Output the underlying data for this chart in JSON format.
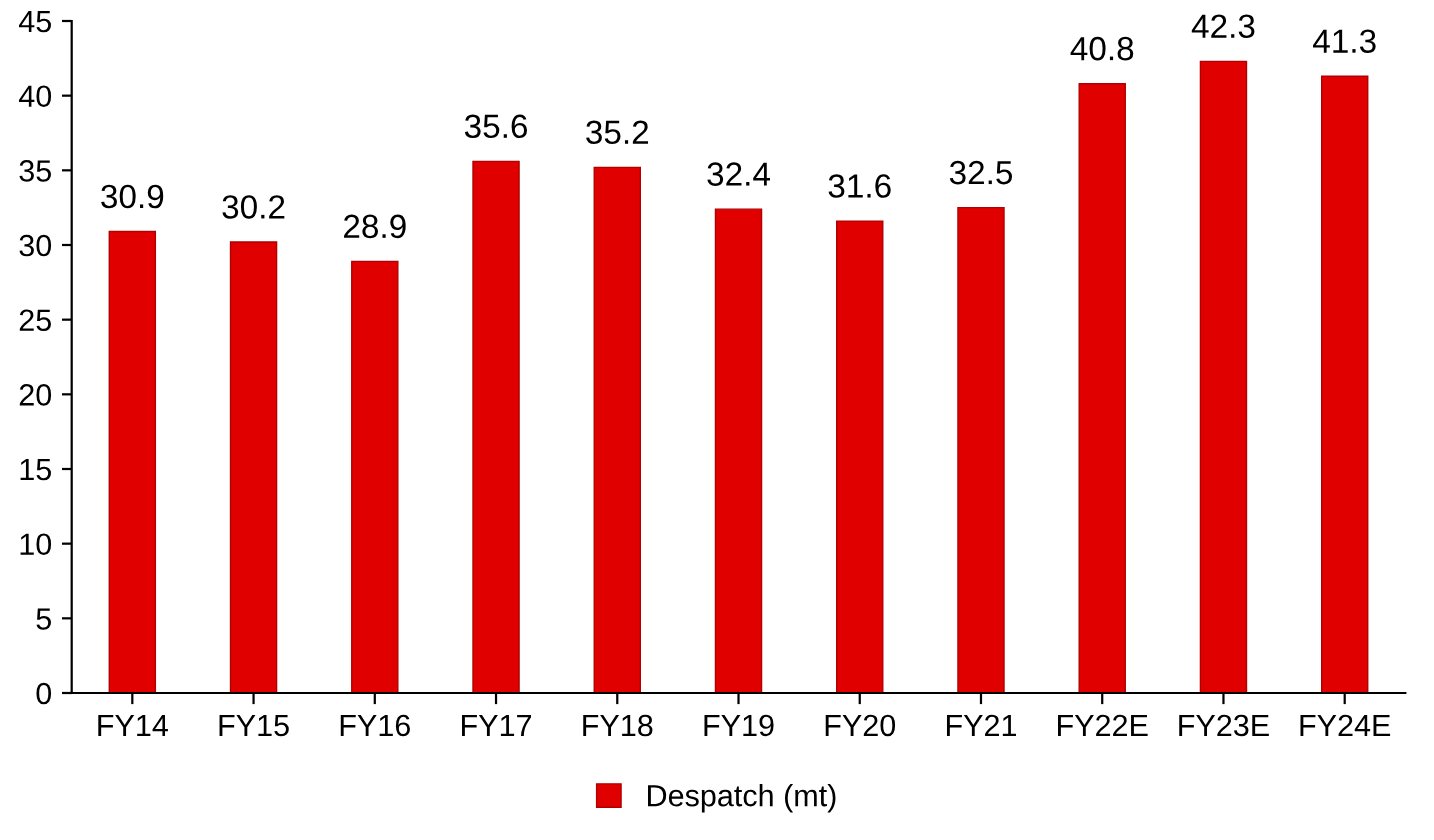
{
  "chart_data": {
    "type": "bar",
    "categories": [
      "FY14",
      "FY15",
      "FY16",
      "FY17",
      "FY18",
      "FY19",
      "FY20",
      "FY21",
      "FY22E",
      "FY23E",
      "FY24E"
    ],
    "series": [
      {
        "name": "Despatch (mt)",
        "color": "#e00000",
        "values": [
          30.9,
          30.2,
          28.9,
          35.6,
          35.2,
          32.4,
          31.6,
          32.5,
          40.8,
          42.3,
          41.3
        ]
      }
    ],
    "ylim": [
      0,
      45
    ],
    "yticks": [
      0,
      5,
      10,
      15,
      20,
      25,
      30,
      35,
      40,
      45
    ],
    "grid": false,
    "legend": "bottom",
    "data_labels": true
  }
}
